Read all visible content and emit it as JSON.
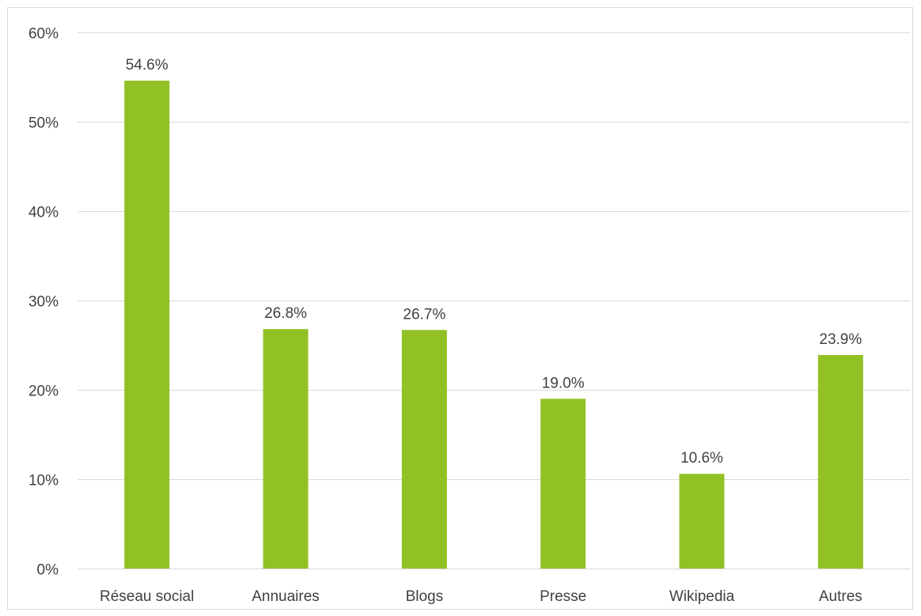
{
  "chart_data": {
    "type": "bar",
    "categories": [
      "Réseau social",
      "Annuaires",
      "Blogs",
      "Presse",
      "Wikipedia",
      "Autres"
    ],
    "values": [
      54.6,
      26.8,
      26.7,
      19.0,
      10.6,
      23.9
    ],
    "value_labels": [
      "54.6%",
      "26.8%",
      "26.7%",
      "19.0%",
      "10.6%",
      "23.9%"
    ],
    "y_ticks": [
      0,
      10,
      20,
      30,
      40,
      50,
      60
    ],
    "y_tick_labels": [
      "0%",
      "10%",
      "20%",
      "30%",
      "40%",
      "50%",
      "60%"
    ],
    "ylim": [
      0,
      60
    ],
    "grid": true,
    "legend": "none",
    "bar_color": "#92c125",
    "gridline_color": "#d9d9d9",
    "text_color": "#404040"
  }
}
